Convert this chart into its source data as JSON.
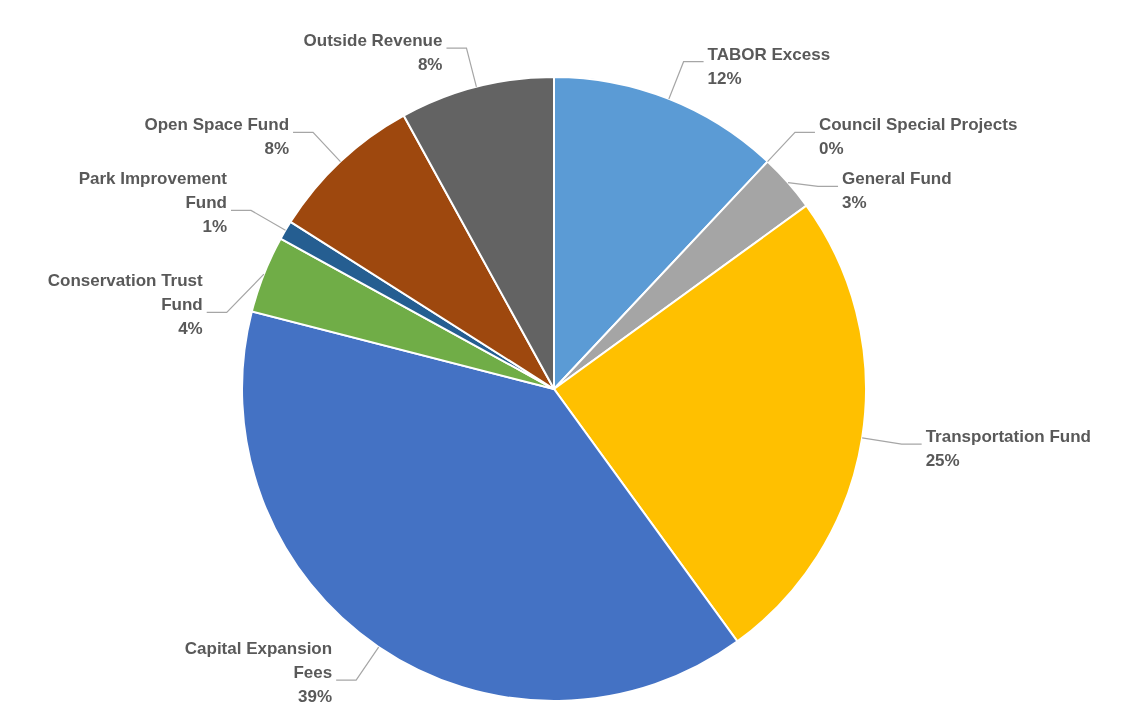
{
  "chart_data": {
    "type": "pie",
    "categories": [
      "TABOR Excess",
      "Council Special Projects",
      "General Fund",
      "Transportation Fund",
      "Capital Expansion Fees",
      "Conservation Trust Fund",
      "Park Improvement Fund",
      "Open Space Fund",
      "Outside Revenue"
    ],
    "values": [
      12,
      0,
      3,
      25,
      39,
      4,
      1,
      8,
      8
    ],
    "value_labels": [
      "12%",
      "0%",
      "3%",
      "25%",
      "39%",
      "4%",
      "1%",
      "8%",
      "8%"
    ],
    "colors": [
      "#5b9bd5",
      "#ed7d31",
      "#a5a5a5",
      "#ffc000",
      "#4472c4",
      "#70ad47",
      "#255e91",
      "#9e480e",
      "#636363"
    ],
    "legend": false
  }
}
